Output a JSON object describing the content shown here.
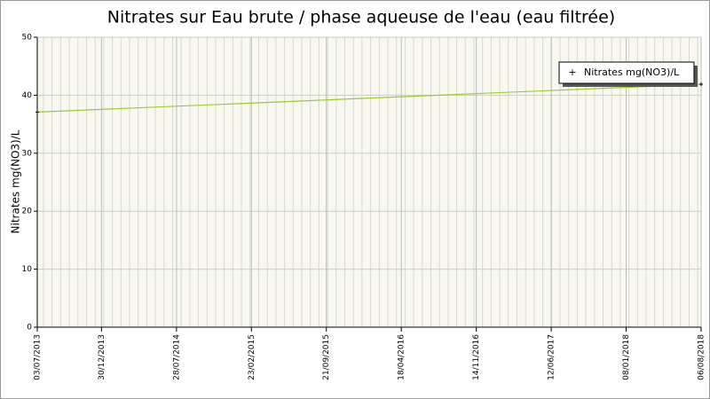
{
  "chart_data": {
    "type": "line",
    "title": "Nitrates sur Eau brute / phase aqueuse de l'eau (eau filtrée)",
    "y_label": "Nitrates mg(NO3)/L",
    "x": [
      "03/07/2013",
      "06/08/2018"
    ],
    "series": [
      {
        "name": "Nitrates mg(NO3)/L",
        "color": "#99cc33",
        "values": [
          37.1,
          41.9
        ]
      }
    ],
    "xlim": [
      "03/07/2013",
      "06/08/2018"
    ],
    "xticks": [
      "03/07/2013",
      "30/12/2013",
      "28/07/2014",
      "23/02/2015",
      "21/09/2015",
      "18/04/2016",
      "14/11/2016",
      "12/06/2017",
      "08/01/2018",
      "06/08/2018"
    ],
    "ylim": [
      0,
      50
    ],
    "yticks": [
      0,
      10,
      20,
      30,
      40,
      50
    ],
    "grid": true
  }
}
